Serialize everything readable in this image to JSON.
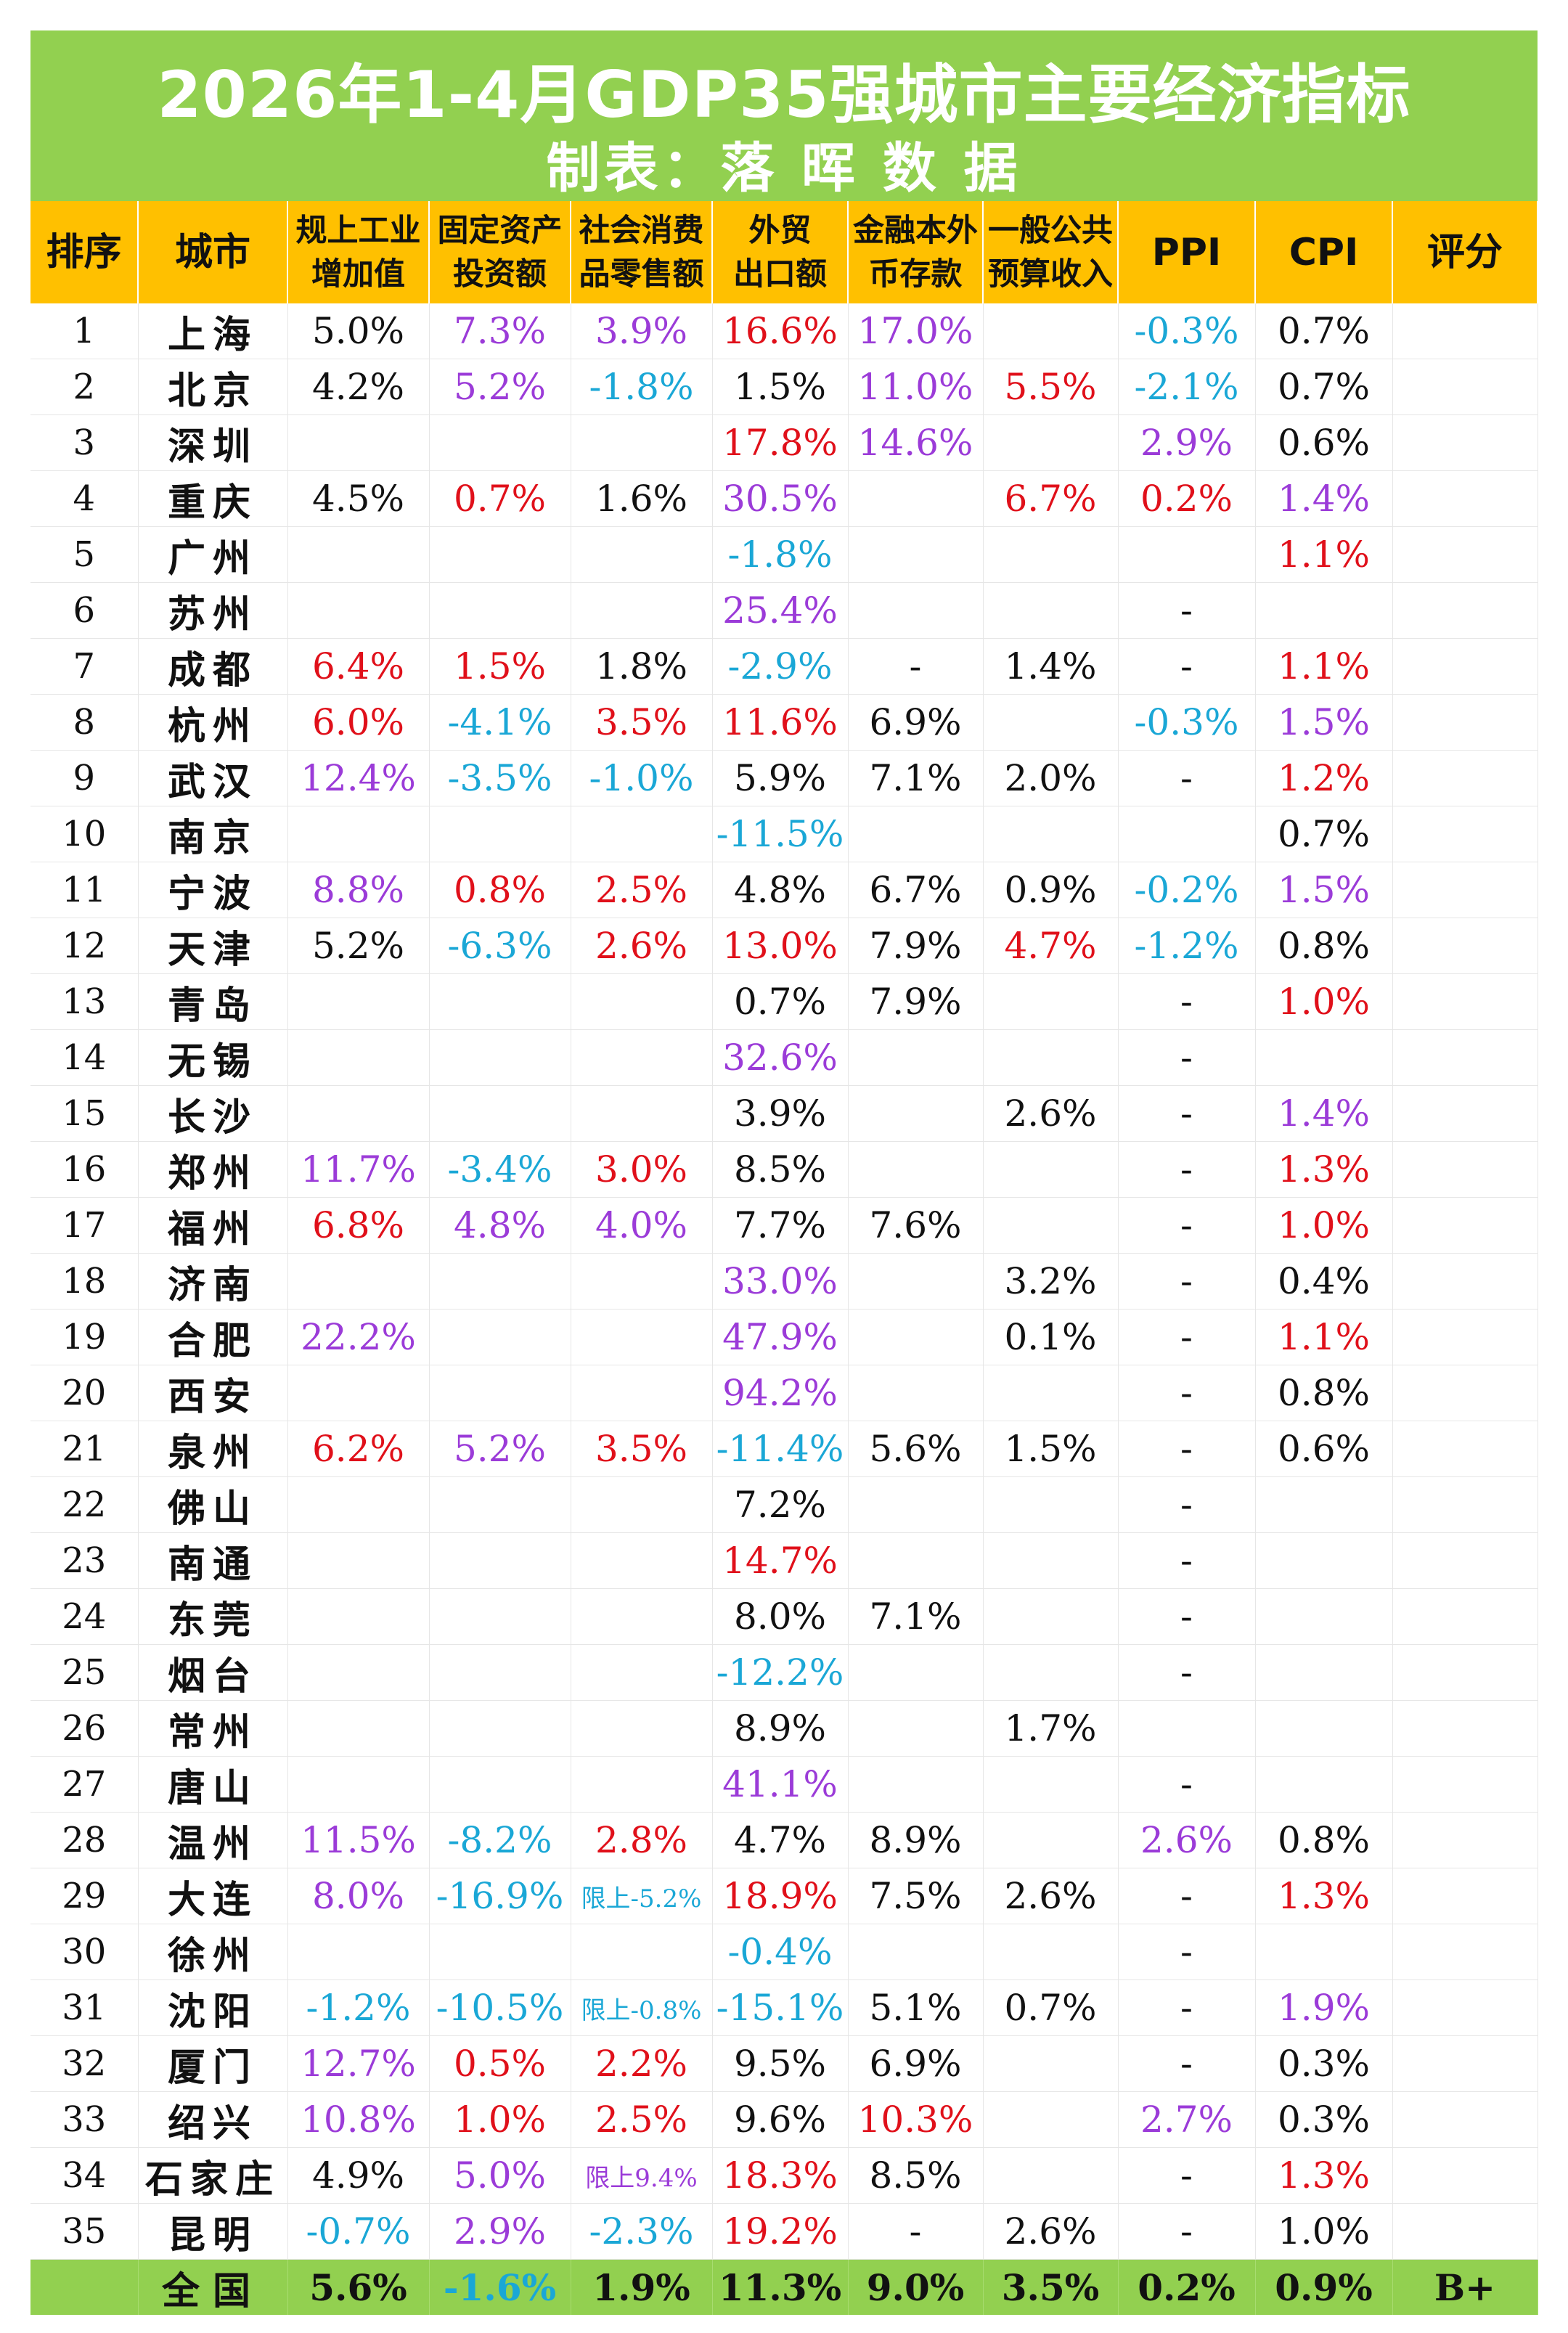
{
  "title": "2026年1-4月GDP35强城市主要经济指标",
  "subtitle": "制表：落 晖 数 据",
  "colors": {
    "black": "#111111",
    "purple": "#9b3bd8",
    "red": "#e0101a",
    "cyan": "#1aa7d6",
    "header_bg": "#ffc000",
    "title_bg": "#92d050"
  },
  "headers": [
    [
      "排序"
    ],
    [
      "城市"
    ],
    [
      "规上工业",
      "增加值"
    ],
    [
      "固定资产",
      "投资额"
    ],
    [
      "社会消费",
      "品零售额"
    ],
    [
      "外贸",
      "出口额"
    ],
    [
      "金融本外",
      "币存款"
    ],
    [
      "一般公共",
      "预算收入"
    ],
    [
      "PPI"
    ],
    [
      "CPI"
    ],
    [
      "评分"
    ]
  ],
  "rows": [
    {
      "rank": "1",
      "city": "上海",
      "cells": [
        [
          "5.0%",
          "k"
        ],
        [
          "7.3%",
          "p"
        ],
        [
          "3.9%",
          "p"
        ],
        [
          "16.6%",
          "r"
        ],
        [
          "17.0%",
          "p"
        ],
        [
          "",
          ""
        ],
        [
          "-0.3%",
          "c"
        ],
        [
          "0.7%",
          "k"
        ],
        [
          "",
          ""
        ]
      ]
    },
    {
      "rank": "2",
      "city": "北京",
      "cells": [
        [
          "4.2%",
          "k"
        ],
        [
          "5.2%",
          "p"
        ],
        [
          "-1.8%",
          "c"
        ],
        [
          "1.5%",
          "k"
        ],
        [
          "11.0%",
          "p"
        ],
        [
          "5.5%",
          "r"
        ],
        [
          "-2.1%",
          "c"
        ],
        [
          "0.7%",
          "k"
        ],
        [
          "",
          ""
        ]
      ]
    },
    {
      "rank": "3",
      "city": "深圳",
      "cells": [
        [
          "",
          ""
        ],
        [
          "",
          ""
        ],
        [
          "",
          ""
        ],
        [
          "17.8%",
          "r"
        ],
        [
          "14.6%",
          "p"
        ],
        [
          "",
          ""
        ],
        [
          "2.9%",
          "p"
        ],
        [
          "0.6%",
          "k"
        ],
        [
          "",
          ""
        ]
      ]
    },
    {
      "rank": "4",
      "city": "重庆",
      "cells": [
        [
          "4.5%",
          "k"
        ],
        [
          "0.7%",
          "r"
        ],
        [
          "1.6%",
          "k"
        ],
        [
          "30.5%",
          "p"
        ],
        [
          "",
          ""
        ],
        [
          "6.7%",
          "r"
        ],
        [
          "0.2%",
          "r"
        ],
        [
          "1.4%",
          "p"
        ],
        [
          "",
          ""
        ]
      ]
    },
    {
      "rank": "5",
      "city": "广州",
      "cells": [
        [
          "",
          ""
        ],
        [
          "",
          ""
        ],
        [
          "",
          ""
        ],
        [
          "-1.8%",
          "c"
        ],
        [
          "",
          ""
        ],
        [
          "",
          ""
        ],
        [
          "",
          ""
        ],
        [
          "1.1%",
          "r"
        ],
        [
          "",
          ""
        ]
      ]
    },
    {
      "rank": "6",
      "city": "苏州",
      "cells": [
        [
          "",
          ""
        ],
        [
          "",
          ""
        ],
        [
          "",
          ""
        ],
        [
          "25.4%",
          "p"
        ],
        [
          "",
          ""
        ],
        [
          "",
          ""
        ],
        [
          "-",
          "k"
        ],
        [
          "",
          ""
        ],
        [
          "",
          ""
        ]
      ]
    },
    {
      "rank": "7",
      "city": "成都",
      "cells": [
        [
          "6.4%",
          "r"
        ],
        [
          "1.5%",
          "r"
        ],
        [
          "1.8%",
          "k"
        ],
        [
          "-2.9%",
          "c"
        ],
        [
          "-",
          "k"
        ],
        [
          "1.4%",
          "k"
        ],
        [
          "-",
          "k"
        ],
        [
          "1.1%",
          "r"
        ],
        [
          "",
          ""
        ]
      ]
    },
    {
      "rank": "8",
      "city": "杭州",
      "cells": [
        [
          "6.0%",
          "r"
        ],
        [
          "-4.1%",
          "c"
        ],
        [
          "3.5%",
          "r"
        ],
        [
          "11.6%",
          "r"
        ],
        [
          "6.9%",
          "k"
        ],
        [
          "",
          ""
        ],
        [
          "-0.3%",
          "c"
        ],
        [
          "1.5%",
          "p"
        ],
        [
          "",
          ""
        ]
      ]
    },
    {
      "rank": "9",
      "city": "武汉",
      "cells": [
        [
          "12.4%",
          "p"
        ],
        [
          "-3.5%",
          "c"
        ],
        [
          "-1.0%",
          "c"
        ],
        [
          "5.9%",
          "k"
        ],
        [
          "7.1%",
          "k"
        ],
        [
          "2.0%",
          "k"
        ],
        [
          "-",
          "k"
        ],
        [
          "1.2%",
          "r"
        ],
        [
          "",
          ""
        ]
      ]
    },
    {
      "rank": "10",
      "city": "南京",
      "cells": [
        [
          "",
          ""
        ],
        [
          "",
          ""
        ],
        [
          "",
          ""
        ],
        [
          "-11.5%",
          "c"
        ],
        [
          "",
          ""
        ],
        [
          "",
          ""
        ],
        [
          "",
          ""
        ],
        [
          "0.7%",
          "k"
        ],
        [
          "",
          ""
        ]
      ]
    },
    {
      "rank": "11",
      "city": "宁波",
      "cells": [
        [
          "8.8%",
          "p"
        ],
        [
          "0.8%",
          "r"
        ],
        [
          "2.5%",
          "r"
        ],
        [
          "4.8%",
          "k"
        ],
        [
          "6.7%",
          "k"
        ],
        [
          "0.9%",
          "k"
        ],
        [
          "-0.2%",
          "c"
        ],
        [
          "1.5%",
          "p"
        ],
        [
          "",
          ""
        ]
      ]
    },
    {
      "rank": "12",
      "city": "天津",
      "cells": [
        [
          "5.2%",
          "k"
        ],
        [
          "-6.3%",
          "c"
        ],
        [
          "2.6%",
          "r"
        ],
        [
          "13.0%",
          "r"
        ],
        [
          "7.9%",
          "k"
        ],
        [
          "4.7%",
          "r"
        ],
        [
          "-1.2%",
          "c"
        ],
        [
          "0.8%",
          "k"
        ],
        [
          "",
          ""
        ]
      ]
    },
    {
      "rank": "13",
      "city": "青岛",
      "cells": [
        [
          "",
          ""
        ],
        [
          "",
          ""
        ],
        [
          "",
          ""
        ],
        [
          "0.7%",
          "k"
        ],
        [
          "7.9%",
          "k"
        ],
        [
          "",
          ""
        ],
        [
          "-",
          "k"
        ],
        [
          "1.0%",
          "r"
        ],
        [
          "",
          ""
        ]
      ]
    },
    {
      "rank": "14",
      "city": "无锡",
      "cells": [
        [
          "",
          ""
        ],
        [
          "",
          ""
        ],
        [
          "",
          ""
        ],
        [
          "32.6%",
          "p"
        ],
        [
          "",
          ""
        ],
        [
          "",
          ""
        ],
        [
          "-",
          "k"
        ],
        [
          "",
          ""
        ],
        [
          "",
          ""
        ]
      ]
    },
    {
      "rank": "15",
      "city": "长沙",
      "cells": [
        [
          "",
          ""
        ],
        [
          "",
          ""
        ],
        [
          "",
          ""
        ],
        [
          "3.9%",
          "k"
        ],
        [
          "",
          ""
        ],
        [
          "2.6%",
          "k"
        ],
        [
          "-",
          "k"
        ],
        [
          "1.4%",
          "p"
        ],
        [
          "",
          ""
        ]
      ]
    },
    {
      "rank": "16",
      "city": "郑州",
      "cells": [
        [
          "11.7%",
          "p"
        ],
        [
          "-3.4%",
          "c"
        ],
        [
          "3.0%",
          "r"
        ],
        [
          "8.5%",
          "k"
        ],
        [
          "",
          ""
        ],
        [
          "",
          ""
        ],
        [
          "-",
          "k"
        ],
        [
          "1.3%",
          "r"
        ],
        [
          "",
          ""
        ]
      ]
    },
    {
      "rank": "17",
      "city": "福州",
      "cells": [
        [
          "6.8%",
          "r"
        ],
        [
          "4.8%",
          "p"
        ],
        [
          "4.0%",
          "p"
        ],
        [
          "7.7%",
          "k"
        ],
        [
          "7.6%",
          "k"
        ],
        [
          "",
          ""
        ],
        [
          "-",
          "k"
        ],
        [
          "1.0%",
          "r"
        ],
        [
          "",
          ""
        ]
      ]
    },
    {
      "rank": "18",
      "city": "济南",
      "cells": [
        [
          "",
          ""
        ],
        [
          "",
          ""
        ],
        [
          "",
          ""
        ],
        [
          "33.0%",
          "p"
        ],
        [
          "",
          ""
        ],
        [
          "3.2%",
          "k"
        ],
        [
          "-",
          "k"
        ],
        [
          "0.4%",
          "k"
        ],
        [
          "",
          ""
        ]
      ]
    },
    {
      "rank": "19",
      "city": "合肥",
      "cells": [
        [
          "22.2%",
          "p"
        ],
        [
          "",
          ""
        ],
        [
          "",
          ""
        ],
        [
          "47.9%",
          "p"
        ],
        [
          "",
          ""
        ],
        [
          "0.1%",
          "k"
        ],
        [
          "-",
          "k"
        ],
        [
          "1.1%",
          "r"
        ],
        [
          "",
          ""
        ]
      ]
    },
    {
      "rank": "20",
      "city": "西安",
      "cells": [
        [
          "",
          ""
        ],
        [
          "",
          ""
        ],
        [
          "",
          ""
        ],
        [
          "94.2%",
          "p"
        ],
        [
          "",
          ""
        ],
        [
          "",
          ""
        ],
        [
          "-",
          "k"
        ],
        [
          "0.8%",
          "k"
        ],
        [
          "",
          ""
        ]
      ]
    },
    {
      "rank": "21",
      "city": "泉州",
      "cells": [
        [
          "6.2%",
          "r"
        ],
        [
          "5.2%",
          "p"
        ],
        [
          "3.5%",
          "r"
        ],
        [
          "-11.4%",
          "c"
        ],
        [
          "5.6%",
          "k"
        ],
        [
          "1.5%",
          "k"
        ],
        [
          "-",
          "k"
        ],
        [
          "0.6%",
          "k"
        ],
        [
          "",
          ""
        ]
      ]
    },
    {
      "rank": "22",
      "city": "佛山",
      "cells": [
        [
          "",
          ""
        ],
        [
          "",
          ""
        ],
        [
          "",
          ""
        ],
        [
          "7.2%",
          "k"
        ],
        [
          "",
          ""
        ],
        [
          "",
          ""
        ],
        [
          "-",
          "k"
        ],
        [
          "",
          ""
        ],
        [
          "",
          ""
        ]
      ]
    },
    {
      "rank": "23",
      "city": "南通",
      "cells": [
        [
          "",
          ""
        ],
        [
          "",
          ""
        ],
        [
          "",
          ""
        ],
        [
          "14.7%",
          "r"
        ],
        [
          "",
          ""
        ],
        [
          "",
          ""
        ],
        [
          "-",
          "k"
        ],
        [
          "",
          ""
        ],
        [
          "",
          ""
        ]
      ]
    },
    {
      "rank": "24",
      "city": "东莞",
      "cells": [
        [
          "",
          ""
        ],
        [
          "",
          ""
        ],
        [
          "",
          ""
        ],
        [
          "8.0%",
          "k"
        ],
        [
          "7.1%",
          "k"
        ],
        [
          "",
          ""
        ],
        [
          "-",
          "k"
        ],
        [
          "",
          ""
        ],
        [
          "",
          ""
        ]
      ]
    },
    {
      "rank": "25",
      "city": "烟台",
      "cells": [
        [
          "",
          ""
        ],
        [
          "",
          ""
        ],
        [
          "",
          ""
        ],
        [
          "-12.2%",
          "c"
        ],
        [
          "",
          ""
        ],
        [
          "",
          ""
        ],
        [
          "-",
          "k"
        ],
        [
          "",
          ""
        ],
        [
          "",
          ""
        ]
      ]
    },
    {
      "rank": "26",
      "city": "常州",
      "cells": [
        [
          "",
          ""
        ],
        [
          "",
          ""
        ],
        [
          "",
          ""
        ],
        [
          "8.9%",
          "k"
        ],
        [
          "",
          ""
        ],
        [
          "1.7%",
          "k"
        ],
        [
          "",
          ""
        ],
        [
          "",
          ""
        ],
        [
          "",
          ""
        ]
      ]
    },
    {
      "rank": "27",
      "city": "唐山",
      "cells": [
        [
          "",
          ""
        ],
        [
          "",
          ""
        ],
        [
          "",
          ""
        ],
        [
          "41.1%",
          "p"
        ],
        [
          "",
          ""
        ],
        [
          "",
          ""
        ],
        [
          "-",
          "k"
        ],
        [
          "",
          ""
        ],
        [
          "",
          ""
        ]
      ]
    },
    {
      "rank": "28",
      "city": "温州",
      "cells": [
        [
          "11.5%",
          "p"
        ],
        [
          "-8.2%",
          "c"
        ],
        [
          "2.8%",
          "r"
        ],
        [
          "4.7%",
          "k"
        ],
        [
          "8.9%",
          "k"
        ],
        [
          "",
          ""
        ],
        [
          "2.6%",
          "p"
        ],
        [
          "0.8%",
          "k"
        ],
        [
          "",
          ""
        ]
      ]
    },
    {
      "rank": "29",
      "city": "大连",
      "cells": [
        [
          "8.0%",
          "p"
        ],
        [
          "-16.9%",
          "c"
        ],
        [
          "限上-5.2%",
          "c"
        ],
        [
          "18.9%",
          "r"
        ],
        [
          "7.5%",
          "k"
        ],
        [
          "2.6%",
          "k"
        ],
        [
          "-",
          "k"
        ],
        [
          "1.3%",
          "r"
        ],
        [
          "",
          ""
        ]
      ]
    },
    {
      "rank": "30",
      "city": "徐州",
      "cells": [
        [
          "",
          ""
        ],
        [
          "",
          ""
        ],
        [
          "",
          ""
        ],
        [
          "-0.4%",
          "c"
        ],
        [
          "",
          ""
        ],
        [
          "",
          ""
        ],
        [
          "-",
          "k"
        ],
        [
          "",
          ""
        ],
        [
          "",
          ""
        ]
      ]
    },
    {
      "rank": "31",
      "city": "沈阳",
      "cells": [
        [
          "-1.2%",
          "c"
        ],
        [
          "-10.5%",
          "c"
        ],
        [
          "限上-0.8%",
          "c"
        ],
        [
          "-15.1%",
          "c"
        ],
        [
          "5.1%",
          "k"
        ],
        [
          "0.7%",
          "k"
        ],
        [
          "-",
          "k"
        ],
        [
          "1.9%",
          "p"
        ],
        [
          "",
          ""
        ]
      ]
    },
    {
      "rank": "32",
      "city": "厦门",
      "cells": [
        [
          "12.7%",
          "p"
        ],
        [
          "0.5%",
          "r"
        ],
        [
          "2.2%",
          "r"
        ],
        [
          "9.5%",
          "k"
        ],
        [
          "6.9%",
          "k"
        ],
        [
          "",
          ""
        ],
        [
          "-",
          "k"
        ],
        [
          "0.3%",
          "k"
        ],
        [
          "",
          ""
        ]
      ]
    },
    {
      "rank": "33",
      "city": "绍兴",
      "cells": [
        [
          "10.8%",
          "p"
        ],
        [
          "1.0%",
          "r"
        ],
        [
          "2.5%",
          "r"
        ],
        [
          "9.6%",
          "k"
        ],
        [
          "10.3%",
          "r"
        ],
        [
          "",
          ""
        ],
        [
          "2.7%",
          "p"
        ],
        [
          "0.3%",
          "k"
        ],
        [
          "",
          ""
        ]
      ]
    },
    {
      "rank": "34",
      "city": "石家庄",
      "cells": [
        [
          "4.9%",
          "k"
        ],
        [
          "5.0%",
          "p"
        ],
        [
          "限上9.4%",
          "p"
        ],
        [
          "18.3%",
          "r"
        ],
        [
          "8.5%",
          "k"
        ],
        [
          "",
          ""
        ],
        [
          "-",
          "k"
        ],
        [
          "1.3%",
          "r"
        ],
        [
          "",
          ""
        ]
      ]
    },
    {
      "rank": "35",
      "city": "昆明",
      "cells": [
        [
          "-0.7%",
          "c"
        ],
        [
          "2.9%",
          "p"
        ],
        [
          "-2.3%",
          "c"
        ],
        [
          "19.2%",
          "r"
        ],
        [
          "-",
          "k"
        ],
        [
          "2.6%",
          "k"
        ],
        [
          "-",
          "k"
        ],
        [
          "1.0%",
          "k"
        ],
        [
          "",
          ""
        ]
      ]
    }
  ],
  "total": {
    "rank": "",
    "city": "全国",
    "cells": [
      [
        "5.6%",
        "k"
      ],
      [
        "-1.6%",
        "c"
      ],
      [
        "1.9%",
        "k"
      ],
      [
        "11.3%",
        "k"
      ],
      [
        "9.0%",
        "k"
      ],
      [
        "3.5%",
        "k"
      ],
      [
        "0.2%",
        "k"
      ],
      [
        "0.9%",
        "k"
      ],
      [
        "B+",
        "k"
      ]
    ]
  }
}
